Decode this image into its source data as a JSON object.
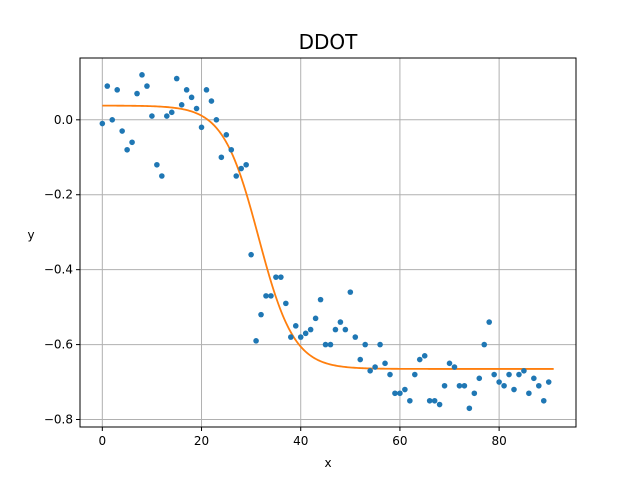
{
  "chart_data": {
    "type": "scatter",
    "title": "DDOT",
    "xlabel": "x",
    "ylabel": "y",
    "xlim": [
      -4.5,
      95.5
    ],
    "ylim": [
      -0.82,
      0.165
    ],
    "xticks": [
      0,
      20,
      40,
      60,
      80
    ],
    "yticks": [
      -0.8,
      -0.6,
      -0.4,
      -0.2,
      0.0
    ],
    "ytick_labels": [
      "−0.8",
      "−0.6",
      "−0.4",
      "−0.2",
      "0.0"
    ],
    "grid": true,
    "colors": {
      "points": "#1f77b4",
      "fit": "#ff7f0e",
      "grid": "#b0b0b0"
    },
    "series": [
      {
        "kind": "points",
        "x": [
          0,
          1,
          2,
          3,
          4,
          5,
          6,
          7,
          8,
          9,
          10,
          11,
          12,
          13,
          14,
          15,
          16,
          17,
          18,
          19,
          20,
          21,
          22,
          23,
          24,
          25,
          26,
          27,
          28,
          29,
          30,
          31,
          32,
          33,
          34,
          35,
          36,
          37,
          38,
          39,
          40,
          41,
          42,
          43,
          44,
          45,
          46,
          47,
          48,
          49,
          50,
          51,
          52,
          53,
          54,
          55,
          56,
          57,
          58,
          59,
          60,
          61,
          62,
          63,
          64,
          65,
          66,
          67,
          68,
          69,
          70,
          71,
          72,
          73,
          74,
          75,
          76,
          77,
          78,
          79,
          80,
          81,
          82,
          83,
          84,
          85,
          86,
          87,
          88,
          89,
          90
        ],
        "y": [
          -0.01,
          0.09,
          0.0,
          0.08,
          -0.03,
          -0.08,
          -0.06,
          0.07,
          0.12,
          0.09,
          0.01,
          -0.12,
          -0.15,
          0.01,
          0.02,
          0.11,
          0.04,
          0.08,
          0.06,
          0.03,
          -0.02,
          0.08,
          0.05,
          0.0,
          -0.1,
          -0.04,
          -0.08,
          -0.15,
          -0.13,
          -0.12,
          -0.36,
          -0.59,
          -0.52,
          -0.47,
          -0.47,
          -0.42,
          -0.42,
          -0.49,
          -0.58,
          -0.55,
          -0.58,
          -0.57,
          -0.56,
          -0.53,
          -0.48,
          -0.6,
          -0.6,
          -0.56,
          -0.54,
          -0.56,
          -0.46,
          -0.58,
          -0.64,
          -0.6,
          -0.67,
          -0.66,
          -0.6,
          -0.65,
          -0.68,
          -0.73,
          -0.73,
          -0.72,
          -0.75,
          -0.68,
          -0.64,
          -0.63,
          -0.75,
          -0.75,
          -0.76,
          -0.71,
          -0.65,
          -0.66,
          -0.71,
          -0.71,
          -0.77,
          -0.73,
          -0.69,
          -0.6,
          -0.54,
          -0.68,
          -0.7,
          -0.71,
          -0.68,
          -0.72,
          -0.68,
          -0.67,
          -0.73,
          -0.69,
          -0.71,
          -0.75,
          -0.7
        ]
      },
      {
        "kind": "fit",
        "x_range": [
          0,
          91
        ],
        "model": "logistic",
        "upper": 0.038,
        "lower": -0.665,
        "midpoint": 31.5,
        "rate": 0.28
      }
    ]
  }
}
